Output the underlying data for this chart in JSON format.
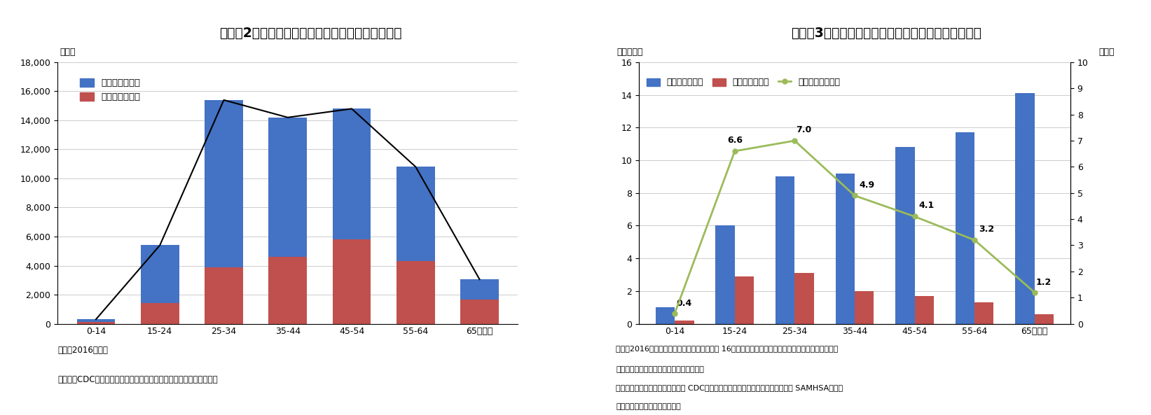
{
  "chart1": {
    "title": "（図表2）薬物過剰摂取による死亡者数（年齢別）",
    "ylabel": "（人）",
    "categories": [
      "0-14",
      "15-24",
      "25-34",
      "35-44",
      "45-54",
      "55-64",
      "65歳以上"
    ],
    "opioid_related": [
      200,
      4000,
      11500,
      9600,
      9000,
      6500,
      1400
    ],
    "opioid_other": [
      100,
      1400,
      3900,
      4600,
      5800,
      4300,
      1650
    ],
    "ylim": [
      0,
      18000
    ],
    "yticks": [
      0,
      2000,
      4000,
      6000,
      8000,
      10000,
      12000,
      14000,
      16000,
      18000
    ],
    "legend1": "オピオイド関連",
    "legend2": "オピオイド以外",
    "color_blue": "#4472C4",
    "color_red": "#C0504D",
    "note1": "（注）2016年実績",
    "note2": "（資料）CDC（疾病予防管理センター）よりニッセイ基礎研究所作成"
  },
  "chart2": {
    "title": "（図表3）オピオイド処方患者、乱用者数（年齢別）",
    "ylabel_left": "（百万人）",
    "ylabel_right": "（％）",
    "categories": [
      "0-14",
      "15-24",
      "25-34",
      "35-44",
      "45-54",
      "55-64",
      "65歳以上"
    ],
    "opioid_prescription": [
      1.0,
      6.0,
      9.0,
      9.2,
      10.8,
      11.7,
      14.1
    ],
    "opioid_abuse": [
      0.2,
      2.9,
      3.1,
      2.0,
      1.7,
      1.3,
      0.6
    ],
    "abuse_rate": [
      0.4,
      6.6,
      7.0,
      4.9,
      4.1,
      3.2,
      1.2
    ],
    "ylim_left": [
      0,
      16
    ],
    "ylim_right": [
      0,
      10
    ],
    "yticks_left": [
      0,
      2,
      4,
      6,
      8,
      10,
      12,
      14,
      16
    ],
    "yticks_right": [
      0,
      1,
      2,
      3,
      4,
      5,
      6,
      7,
      8,
      9,
      10
    ],
    "legend1": "オピオイド処方",
    "legend2": "オピオイド乱用",
    "legend3": "乱用比率（右軸）",
    "color_blue": "#4472C4",
    "color_red": "#C0504D",
    "color_green": "#9BBB59",
    "note1": "（注）2016年実績。オピオイド処方患者数は 16年に最低１枚オピオイド薬の処方を受けた患者数。",
    "note2": "　　　乱用比率は年齢別人口に対する比率",
    "note3": "（資料）疾病予防管理センター（ CDC）、薬物乱用および精神衛生サービス局（ SAMHSA）より",
    "note4": "　　　ニッセイ基礎研究所作成",
    "rate_labels": [
      "0.4",
      "6.6",
      "7.0",
      "4.9",
      "4.1",
      "3.2",
      "1.2"
    ]
  },
  "bg_color": "#FFFFFF",
  "font_color": "#000000"
}
